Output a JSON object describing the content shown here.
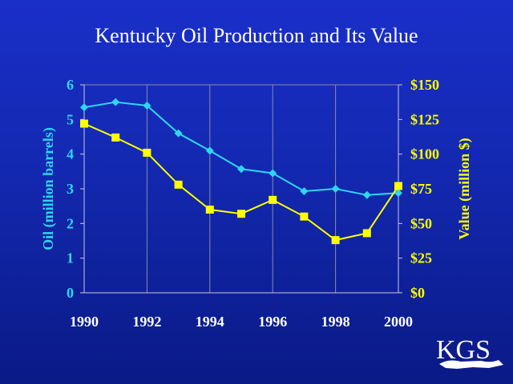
{
  "chart_data": {
    "type": "line",
    "title": "Kentucky Oil Production and Its Value",
    "x": [
      1990,
      1991,
      1992,
      1993,
      1994,
      1995,
      1996,
      1997,
      1998,
      1999,
      2000
    ],
    "x_ticks": [
      "1990",
      "1992",
      "1994",
      "1996",
      "1998",
      "2000"
    ],
    "xlim": [
      1990,
      2000
    ],
    "ylabel_left": "Oil (million barrels)",
    "ylim_left": [
      0,
      6
    ],
    "yticks_left": [
      "0",
      "1",
      "2",
      "3",
      "4",
      "5",
      "6"
    ],
    "ylabel_right": "Value (million $)",
    "ylim_right": [
      0,
      150
    ],
    "yticks_right": [
      "$0",
      "$25",
      "$50",
      "$75",
      "$100",
      "$125",
      "$150"
    ],
    "grid": "vertical",
    "series": [
      {
        "axis": "left",
        "marker": "diamond",
        "color": "#2fd6f0",
        "values": [
          5.35,
          5.5,
          5.4,
          4.6,
          4.1,
          3.57,
          3.45,
          2.93,
          3.0,
          2.82,
          2.88
        ]
      },
      {
        "axis": "right",
        "marker": "square",
        "color": "#ffff00",
        "values": [
          122,
          112,
          101,
          78,
          60,
          57,
          67,
          55,
          38,
          43,
          77
        ]
      }
    ]
  },
  "logo": {
    "text": "KGS"
  }
}
